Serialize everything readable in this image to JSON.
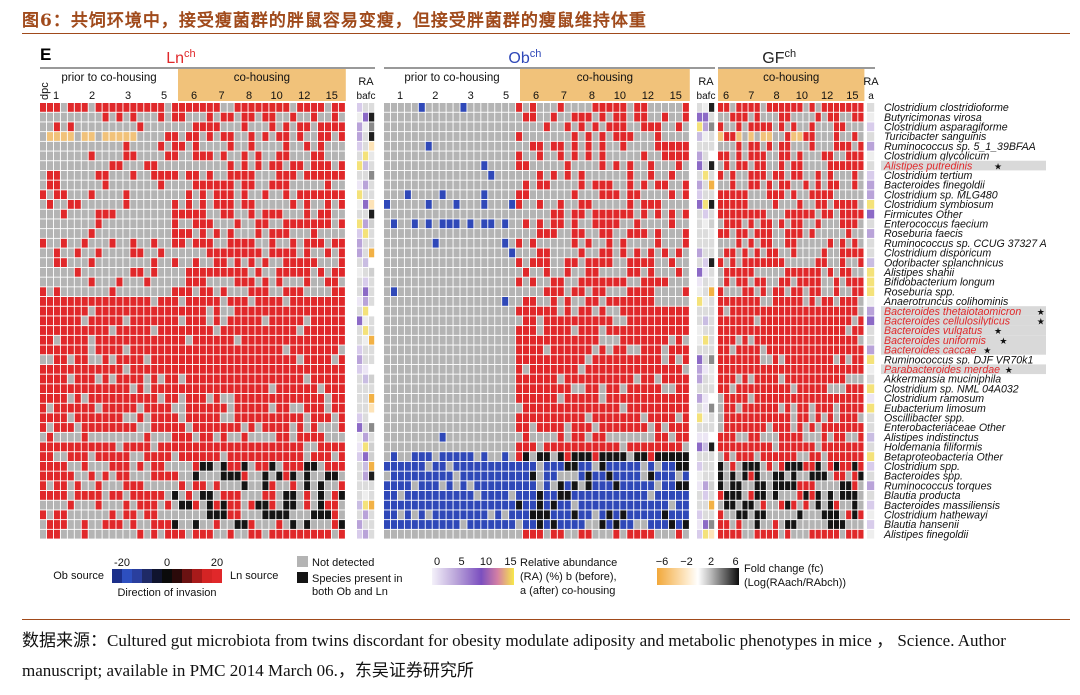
{
  "figure": {
    "title": "图6：共饲环境中，接受瘦菌群的胖鼠容易变瘦，但接受胖菌群的瘦鼠维持体重",
    "source": "数据来源：Cultured gut microbiota from twins discordant for obesity modulate adiposity and metabolic phenotypes in mice ， Science. Author manuscript; available in PMC 2014 March 06.，东吴证券研究所",
    "panel_label": "E"
  },
  "colors": {
    "title": "#a04a1b",
    "not_detected": "#b4b4b4",
    "ln_source": "#e0282a",
    "ob_source": "#2f48b8",
    "present_both": "#141414",
    "cohousing_band": "#f1c27a",
    "highlight_row": "#d9d9d9",
    "highlight_text": "#e0282a"
  },
  "chart_data": {
    "type": "heatmap",
    "dpc_label": "dpc",
    "groups": [
      {
        "name": "Ln",
        "sup": "ch",
        "color": "#e0282a",
        "phase1": "prior to co-housing",
        "phase2": "co-housing",
        "ticks": [
          "1",
          "2",
          "3",
          "5",
          "6",
          "7",
          "8",
          "10",
          "12",
          "15"
        ],
        "ra_label": "RA",
        "ra_cols": "bafc",
        "dominant": "ln"
      },
      {
        "name": "Ob",
        "sup": "ch",
        "color": "#2f48b8",
        "phase1": "prior to co-housing",
        "phase2": "co-housing",
        "ticks": [
          "1",
          "2",
          "3",
          "5",
          "6",
          "7",
          "8",
          "10",
          "12",
          "15"
        ],
        "ra_label": "RA",
        "ra_cols": "bafc",
        "dominant": "ob"
      },
      {
        "name": "GF",
        "sup": "ch",
        "color": "#222222",
        "phase1": "",
        "phase2": "co-housing",
        "ticks": [
          "6",
          "7",
          "8",
          "10",
          "12",
          "15"
        ],
        "ra_label": "RA",
        "ra_cols": "a",
        "dominant": "ln"
      }
    ],
    "species": [
      {
        "name": "Clostridium clostridioforme",
        "hl": false
      },
      {
        "name": "Butyricimonas virosa",
        "hl": false
      },
      {
        "name": "Clostridium asparagiforme",
        "hl": false
      },
      {
        "name": "Turicibacter sanguinis",
        "hl": false
      },
      {
        "name": "Ruminococcus sp. 5_1_39BFAA",
        "hl": false
      },
      {
        "name": "Clostridium glycolicum",
        "hl": false
      },
      {
        "name": "Alistipes putredinis",
        "hl": true
      },
      {
        "name": "Clostridium tertium",
        "hl": false
      },
      {
        "name": "Bacteroides finegoldii",
        "hl": false
      },
      {
        "name": "Clostridium sp. MLG480",
        "hl": false
      },
      {
        "name": "Clostridium symbiosum",
        "hl": false
      },
      {
        "name": "Firmicutes Other",
        "hl": false
      },
      {
        "name": "Enterococcus faecium",
        "hl": false
      },
      {
        "name": "Roseburia faecis",
        "hl": false
      },
      {
        "name": "Ruminococcus sp. CCUG 37327 A",
        "hl": false
      },
      {
        "name": "Clostridium disporicum",
        "hl": false
      },
      {
        "name": "Odoribacter splanchnicus",
        "hl": false
      },
      {
        "name": "Alistipes shahii",
        "hl": false
      },
      {
        "name": "Bifidobacterium longum",
        "hl": false
      },
      {
        "name": "Roseburia spp.",
        "hl": false
      },
      {
        "name": "Anaerotruncus colihominis",
        "hl": false
      },
      {
        "name": "Bacteroides thetaiotaomicron",
        "hl": true
      },
      {
        "name": "Bacteroides cellulosilyticus",
        "hl": true
      },
      {
        "name": "Bacteroides vulgatus",
        "hl": true
      },
      {
        "name": "Bacteroides uniformis",
        "hl": true
      },
      {
        "name": "Bacteroides caccae",
        "hl": true
      },
      {
        "name": "Ruminococcus sp. DJF VR70k1",
        "hl": false
      },
      {
        "name": "Parabacteroides merdae",
        "hl": true
      },
      {
        "name": "Akkermansia muciniphila",
        "hl": false
      },
      {
        "name": "Clostridium sp. NML 04A032",
        "hl": false
      },
      {
        "name": "Clostridium ramosum",
        "hl": false
      },
      {
        "name": "Eubacterium limosum",
        "hl": false
      },
      {
        "name": "Oscillibacter spp.",
        "hl": false
      },
      {
        "name": "Enterobacteriaceae Other",
        "hl": false
      },
      {
        "name": "Alistipes indistinctus",
        "hl": false
      },
      {
        "name": "Holdemania filiformis",
        "hl": false
      },
      {
        "name": "Betaproteobacteria Other",
        "hl": false
      },
      {
        "name": "Clostridium spp.",
        "hl": false
      },
      {
        "name": "Bacteroides spp.",
        "hl": false
      },
      {
        "name": "Ruminococcus torques",
        "hl": false
      },
      {
        "name": "Blautia producta",
        "hl": false
      },
      {
        "name": "Bacteroides massiliensis",
        "hl": false
      },
      {
        "name": "Clostridium hathewayi",
        "hl": false
      },
      {
        "name": "Blautia hansenii",
        "hl": false
      },
      {
        "name": "Alistipes finegoldii",
        "hl": false
      }
    ],
    "starred": [
      "Alistipes putredinis",
      "Bacteroides thetaiotaomicron",
      "Bacteroides cellulosilyticus",
      "Bacteroides vulgatus",
      "Bacteroides uniformis",
      "Bacteroides caccae",
      "Parabacteroides merdae"
    ],
    "legend": {
      "invasion": {
        "left_label": "Ob source",
        "right_label": "Ln source",
        "ticks": [
          "-20",
          "0",
          "20"
        ],
        "caption": "Direction of invasion",
        "range": [
          -20,
          20
        ]
      },
      "categories": [
        {
          "label": "Not detected",
          "color": "#b4b4b4"
        },
        {
          "label": "Species present in both Ob and Ln",
          "color": "#141414"
        }
      ],
      "abundance": {
        "ticks": [
          "0",
          "5",
          "10",
          "15"
        ],
        "range": [
          0,
          15
        ],
        "caption": [
          "Relative abundance",
          "(RA) (%) b (before),",
          "a (after) co-housing"
        ]
      },
      "fold_change": {
        "ticks": [
          "−6",
          "−2",
          "2",
          "6"
        ],
        "range": [
          -6,
          6
        ],
        "caption": [
          "Fold change (fc)",
          "(Log(RAach/RAbch))"
        ]
      }
    }
  }
}
